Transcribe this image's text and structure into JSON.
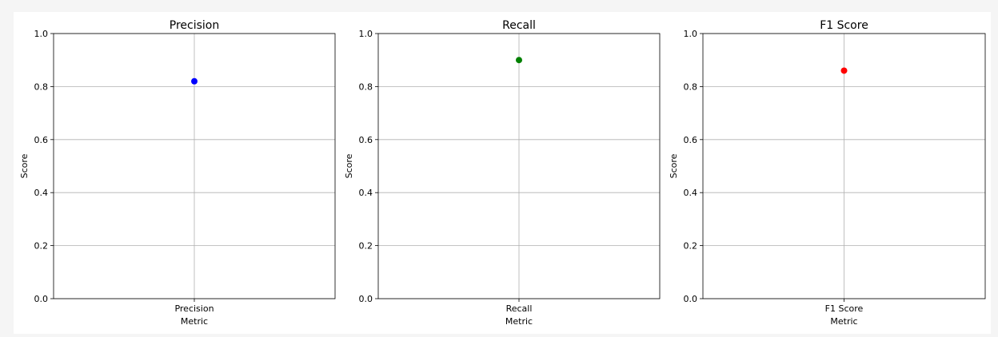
{
  "chart_data": [
    {
      "type": "scatter",
      "title": "Precision",
      "xlabel": "Metric",
      "ylabel": "Score",
      "categories": [
        "Precision"
      ],
      "values": [
        0.82
      ],
      "ylim": [
        0,
        1
      ],
      "yticks": [
        "0.0",
        "0.2",
        "0.4",
        "0.6",
        "0.8",
        "1.0"
      ],
      "color": "#0000ff",
      "grid": true
    },
    {
      "type": "scatter",
      "title": "Recall",
      "xlabel": "Metric",
      "ylabel": "Score",
      "categories": [
        "Recall"
      ],
      "values": [
        0.9
      ],
      "ylim": [
        0,
        1
      ],
      "yticks": [
        "0.0",
        "0.2",
        "0.4",
        "0.6",
        "0.8",
        "1.0"
      ],
      "color": "#008000",
      "grid": true
    },
    {
      "type": "scatter",
      "title": "F1 Score",
      "xlabel": "Metric",
      "ylabel": "Score",
      "categories": [
        "F1 Score"
      ],
      "values": [
        0.86
      ],
      "ylim": [
        0,
        1
      ],
      "yticks": [
        "0.0",
        "0.2",
        "0.4",
        "0.6",
        "0.8",
        "1.0"
      ],
      "color": "#ff0000",
      "grid": true
    }
  ]
}
